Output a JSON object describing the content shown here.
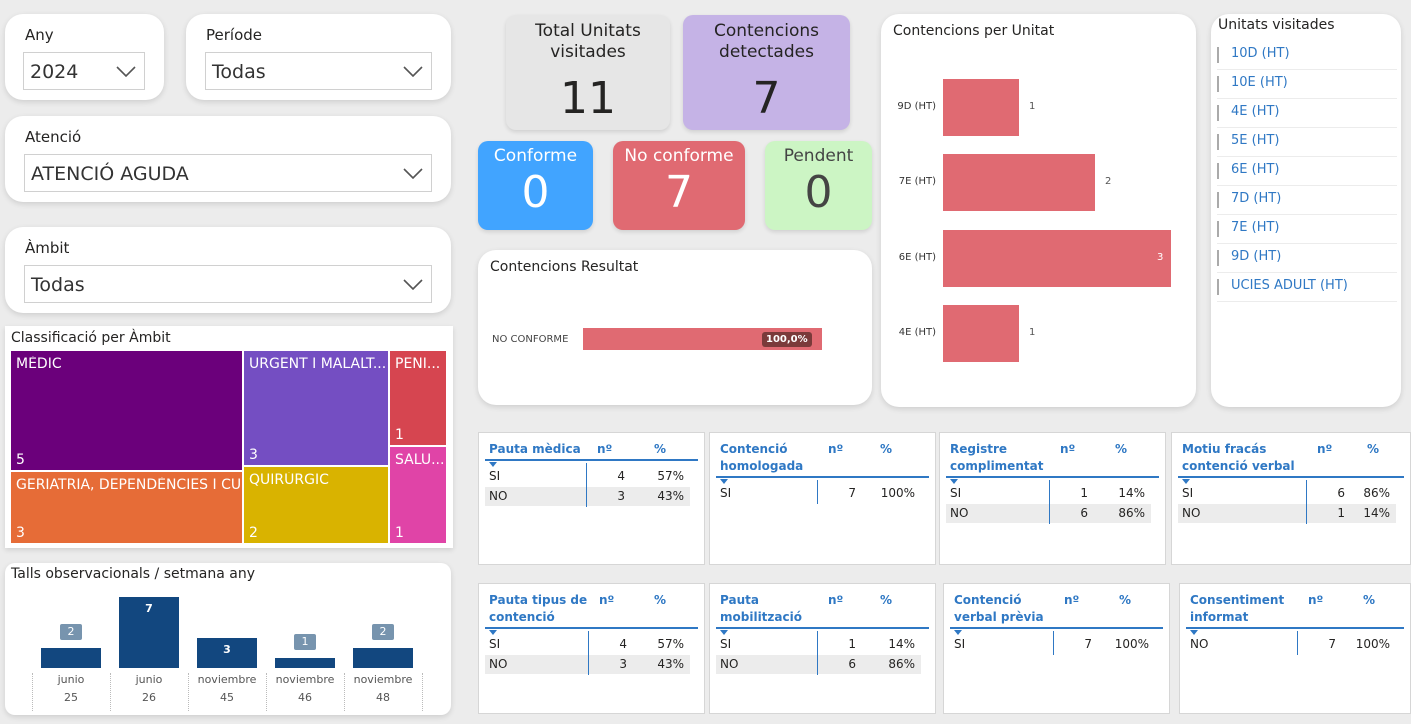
{
  "filters": {
    "any": {
      "title": "Any",
      "value": "2024"
    },
    "periode": {
      "title": "Període",
      "value": "Todas"
    },
    "atencio": {
      "title": "Atenció",
      "value": "ATENCIÓ AGUDA"
    },
    "ambit": {
      "title": "Àmbit",
      "value": "Todas"
    }
  },
  "kpis": {
    "total_unitats": {
      "label": "Total Unitats visitades",
      "value": "11",
      "color": "#e6e6e6"
    },
    "contencions_detectades": {
      "label": "Contencions detectades",
      "value": "7",
      "color": "#c5b3e6"
    },
    "conforme": {
      "label": "Conforme",
      "value": "0",
      "color": "#41a4ff"
    },
    "no_conforme": {
      "label": "No conforme",
      "value": "7",
      "color": "#e06a72"
    },
    "pendent": {
      "label": "Pendent",
      "value": "0",
      "color": "#ccf5c4"
    }
  },
  "contencions_resultat": {
    "title": "Contencions Resultat",
    "category": "NO CONFORME",
    "value": 100,
    "label": "100,0%",
    "color": "#e06a72"
  },
  "contencions_per_unitat": {
    "title": "Contencions per Unitat",
    "color": "#e06a72",
    "bars": [
      {
        "unit": "9D (HT)",
        "value": 1
      },
      {
        "unit": "7E (HT)",
        "value": 2
      },
      {
        "unit": "6E (HT)",
        "value": 3
      },
      {
        "unit": "4E (HT)",
        "value": 1
      }
    ],
    "max": 3
  },
  "unitats_visitades": {
    "title": "Unitats visitades",
    "items": [
      "10D (HT)",
      "10E (HT)",
      "4E (HT)",
      "5E (HT)",
      "6E (HT)",
      "7D (HT)",
      "7E (HT)",
      "9D (HT)",
      "UCIES ADULT (HT)"
    ]
  },
  "classificacio": {
    "title": "Classificació per Àmbit",
    "items": [
      {
        "name": "MÈDIC",
        "count": "5",
        "color": "#6b007b"
      },
      {
        "name": "GERIATRIA, DEPENDÈNCIES I CU...",
        "count": "3",
        "color": "#e66c37"
      },
      {
        "name": "URGENT I MALALT...",
        "count": "3",
        "color": "#744ec2"
      },
      {
        "name": "QUIRÚRGIC",
        "count": "2",
        "color": "#d9b300"
      },
      {
        "name": "PENI...",
        "count": "1",
        "color": "#d64550"
      },
      {
        "name": "SALU...",
        "count": "1",
        "color": "#e044a7"
      }
    ]
  },
  "talls": {
    "title": "Talls observacionals / setmana any",
    "color": "#12477f",
    "max": 7,
    "weeks": [
      {
        "month": "junio",
        "week": "25",
        "value": 2
      },
      {
        "month": "junio",
        "week": "26",
        "value": 7
      },
      {
        "month": "noviembre",
        "week": "45",
        "value": 3
      },
      {
        "month": "noviembre",
        "week": "46",
        "value": 1
      },
      {
        "month": "noviembre",
        "week": "48",
        "value": 2
      }
    ]
  },
  "tables": [
    {
      "title": "Pauta mèdica",
      "col_n": "nº",
      "col_pct": "%",
      "rows": [
        {
          "k": "SI",
          "n": "4",
          "p": "57%"
        },
        {
          "k": "NO",
          "n": "3",
          "p": "43%"
        }
      ]
    },
    {
      "title": "Contenció homologada",
      "col_n": "nº",
      "col_pct": "%",
      "rows": [
        {
          "k": "SI",
          "n": "7",
          "p": "100%"
        }
      ]
    },
    {
      "title": "Registre complimentat",
      "col_n": "nº",
      "col_pct": "%",
      "rows": [
        {
          "k": "SI",
          "n": "1",
          "p": "14%"
        },
        {
          "k": "NO",
          "n": "6",
          "p": "86%"
        }
      ]
    },
    {
      "title": "Motiu fracás contenció verbal",
      "col_n": "nº",
      "col_pct": "%",
      "rows": [
        {
          "k": "SI",
          "n": "6",
          "p": "86%"
        },
        {
          "k": "NO",
          "n": "1",
          "p": "14%"
        }
      ]
    },
    {
      "title": "Pauta tipus de contenció",
      "col_n": "nº",
      "col_pct": "%",
      "rows": [
        {
          "k": "SI",
          "n": "4",
          "p": "57%"
        },
        {
          "k": "NO",
          "n": "3",
          "p": "43%"
        }
      ]
    },
    {
      "title": "Pauta mobilització",
      "col_n": "nº",
      "col_pct": "%",
      "rows": [
        {
          "k": "SI",
          "n": "1",
          "p": "14%"
        },
        {
          "k": "NO",
          "n": "6",
          "p": "86%"
        }
      ]
    },
    {
      "title": "Contenció verbal prèvia",
      "col_n": "nº",
      "col_pct": "%",
      "rows": [
        {
          "k": "SI",
          "n": "7",
          "p": "100%"
        }
      ]
    },
    {
      "title": "Consentiment informat",
      "col_n": "nº",
      "col_pct": "%",
      "rows": [
        {
          "k": "NO",
          "n": "7",
          "p": "100%"
        }
      ]
    }
  ]
}
